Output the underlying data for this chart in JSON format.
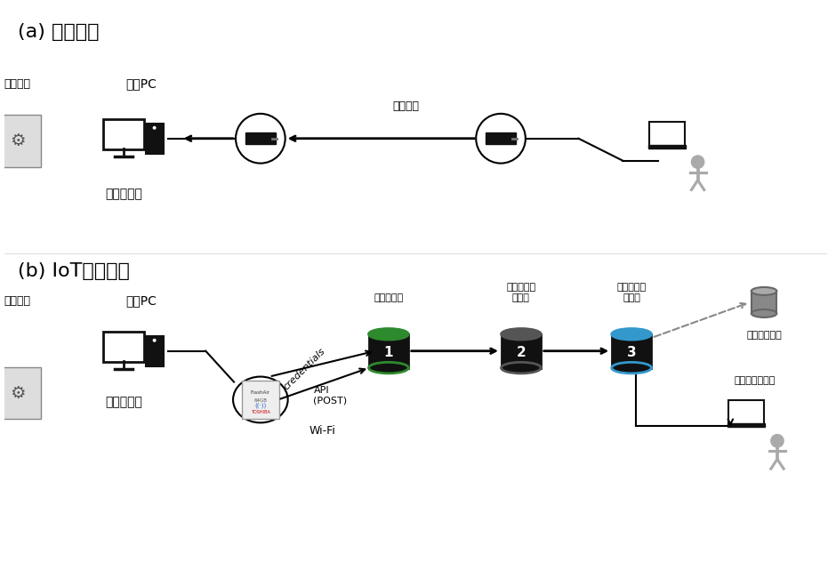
{
  "bg_color": "#ffffff",
  "title_a": "(a) 従来方法",
  "title_b": "(b) IoTシステム",
  "label_keisoku": "計測装置",
  "label_seigyo": "制御PC",
  "label_offline": "オフライン",
  "label_mochiaruki": "持ち歩き",
  "label_ninshо": "認証サーバ",
  "label_chikuseki": "データ蓄積\nサーバ",
  "label_shushu": "データ収集\nサーバ",
  "label_sub": "サブシステム",
  "label_browser": "ウェブブラウザ",
  "label_wifi": "Wi-Fi",
  "label_credentials": "credentials",
  "label_api": "API\n(POST)",
  "server1_label": "1",
  "server2_label": "2",
  "server3_label": "3",
  "server1_rim_color": "#2d8a2d",
  "server2_rim_color": "#555555",
  "server3_rim_color": "#3399cc",
  "server_body_color": "#111111",
  "server_top_color": "#333333"
}
